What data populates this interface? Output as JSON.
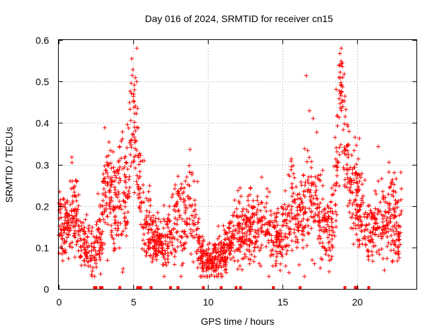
{
  "chart_data": {
    "type": "scatter",
    "title": "Day 016 of 2024, SRMTID for receiver cn15",
    "xlabel": "GPS time / hours",
    "ylabel": "SRMTID / TECUs",
    "xlim": [
      0,
      24
    ],
    "ylim": [
      0,
      0.6
    ],
    "xticks": [
      0,
      5,
      10,
      15,
      20
    ],
    "xtick_labels": [
      "0",
      "5",
      "10",
      "15",
      "20"
    ],
    "yticks": [
      0,
      0.1,
      0.2,
      0.3,
      0.4,
      0.5,
      0.6
    ],
    "ytick_labels": [
      "0",
      "0.1",
      "0.2",
      "0.3",
      "0.4",
      "0.5",
      "0.6"
    ],
    "grid": true,
    "marker": "+",
    "color": "#ff0000",
    "series": [
      {
        "name": "SRMTID",
        "profile_hours": [
          0,
          0.3,
          0.6,
          0.9,
          1.2,
          1.6,
          2.0,
          2.4,
          2.8,
          3.0,
          3.4,
          3.8,
          4.2,
          4.6,
          4.8,
          5.0,
          5.3,
          5.6,
          6.0,
          6.4,
          6.8,
          7.2,
          7.6,
          8.0,
          8.4,
          8.8,
          9.2,
          9.6,
          10.0,
          10.4,
          10.8,
          11.2,
          11.6,
          12.0,
          12.4,
          12.8,
          13.2,
          13.6,
          14.0,
          14.4,
          14.8,
          15.2,
          15.6,
          16.0,
          16.4,
          16.8,
          17.2,
          17.6,
          18.0,
          18.4,
          18.7,
          18.9,
          19.2,
          19.6,
          20.0,
          20.4,
          20.8,
          21.2,
          21.6,
          22.0,
          22.4,
          22.8,
          23.0
        ],
        "profile_median": [
          0.17,
          0.13,
          0.16,
          0.19,
          0.18,
          0.11,
          0.1,
          0.09,
          0.12,
          0.22,
          0.24,
          0.2,
          0.25,
          0.22,
          0.35,
          0.45,
          0.3,
          0.18,
          0.15,
          0.12,
          0.11,
          0.1,
          0.13,
          0.17,
          0.19,
          0.2,
          0.14,
          0.08,
          0.06,
          0.07,
          0.08,
          0.09,
          0.12,
          0.14,
          0.13,
          0.14,
          0.15,
          0.16,
          0.15,
          0.12,
          0.13,
          0.15,
          0.2,
          0.15,
          0.18,
          0.25,
          0.19,
          0.17,
          0.15,
          0.16,
          0.28,
          0.48,
          0.35,
          0.24,
          0.22,
          0.18,
          0.14,
          0.15,
          0.16,
          0.16,
          0.17,
          0.12,
          0.18
        ],
        "profile_spread": [
          0.04,
          0.03,
          0.04,
          0.06,
          0.05,
          0.03,
          0.03,
          0.03,
          0.04,
          0.06,
          0.06,
          0.06,
          0.08,
          0.06,
          0.08,
          0.07,
          0.07,
          0.05,
          0.04,
          0.03,
          0.03,
          0.03,
          0.04,
          0.05,
          0.06,
          0.05,
          0.04,
          0.03,
          0.02,
          0.02,
          0.03,
          0.03,
          0.03,
          0.04,
          0.04,
          0.04,
          0.04,
          0.04,
          0.04,
          0.03,
          0.04,
          0.05,
          0.06,
          0.04,
          0.06,
          0.08,
          0.06,
          0.05,
          0.04,
          0.05,
          0.08,
          0.07,
          0.08,
          0.06,
          0.06,
          0.05,
          0.04,
          0.04,
          0.05,
          0.05,
          0.06,
          0.04,
          0.04
        ],
        "point_count": 2200
      }
    ],
    "baseline_gaps_hours": [
      2.4,
      2.5,
      2.8,
      2.9,
      4.1,
      5.3,
      5.4,
      5.5,
      6.2,
      7.5,
      8.0,
      9.7,
      10.9,
      11.9,
      12.2,
      14.4,
      16.2,
      19.2,
      19.9,
      20.0,
      20.8
    ]
  }
}
